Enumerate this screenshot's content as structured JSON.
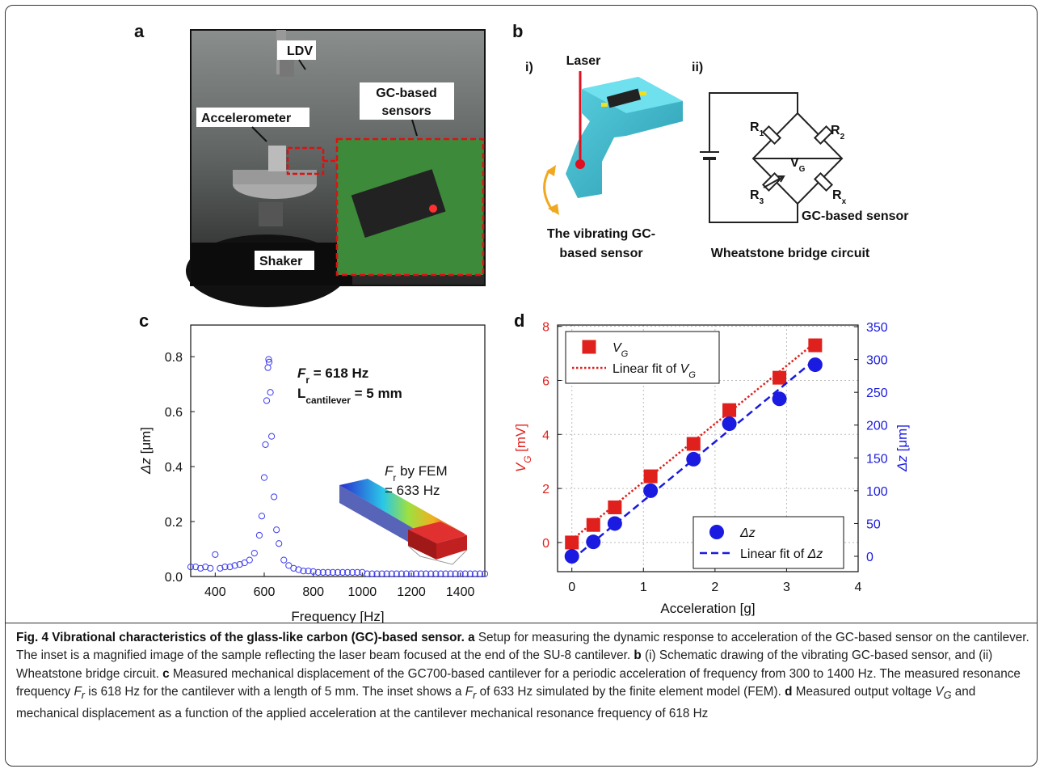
{
  "panel_a": {
    "label": "a",
    "callouts": [
      "LDV",
      "Accelerometer",
      "GC-based",
      "sensors",
      "Shaker"
    ]
  },
  "panel_b": {
    "label": "b",
    "part_i": {
      "label": "i)",
      "laser": "Laser",
      "caption": [
        "The vibrating GC-",
        "based sensor"
      ]
    },
    "part_ii": {
      "label": "ii)",
      "resistors": [
        [
          "R",
          "1"
        ],
        [
          "R",
          "2"
        ],
        [
          "R",
          "3"
        ],
        [
          "R",
          "x"
        ]
      ],
      "voltage": [
        "V",
        "G"
      ],
      "sensor": "GC-based sensor",
      "caption": "Wheatstone bridge circuit"
    }
  },
  "chart_data": [
    {
      "type": "scatter",
      "panel_label": "c",
      "xlabel": "Frequency [Hz]",
      "ylabel": [
        {
          "text": "Δz",
          "style": "italic"
        },
        {
          "text": " [μm]",
          "style": "plain"
        }
      ],
      "xlim": [
        300,
        1500
      ],
      "xticks": [
        400,
        600,
        800,
        1000,
        1200,
        1400
      ],
      "ylim": [
        0,
        0.915
      ],
      "yticks": [
        {
          "value": 0,
          "label": "0.0"
        },
        0.2,
        0.4,
        0.6,
        0.8
      ],
      "series": [
        {
          "color": "#3c3cf0",
          "marker": "open-circle",
          "x": [
            300,
            320,
            340,
            360,
            380,
            400,
            420,
            440,
            460,
            480,
            500,
            520,
            540,
            560,
            580,
            590,
            600,
            605,
            610,
            615,
            618,
            620,
            625,
            630,
            640,
            650,
            660,
            680,
            700,
            720,
            740,
            760,
            780,
            800,
            820,
            840,
            860,
            880,
            900,
            920,
            940,
            960,
            980,
            1000,
            1020,
            1040,
            1060,
            1080,
            1100,
            1120,
            1140,
            1160,
            1180,
            1200,
            1220,
            1240,
            1260,
            1280,
            1300,
            1320,
            1340,
            1360,
            1380,
            1400,
            1420,
            1440,
            1460,
            1480,
            1500
          ],
          "values": [
            0.035,
            0.035,
            0.03,
            0.035,
            0.03,
            0.08,
            0.03,
            0.035,
            0.035,
            0.04,
            0.044,
            0.05,
            0.06,
            0.085,
            0.15,
            0.22,
            0.36,
            0.48,
            0.64,
            0.76,
            0.79,
            0.78,
            0.67,
            0.51,
            0.29,
            0.17,
            0.12,
            0.06,
            0.04,
            0.03,
            0.025,
            0.02,
            0.02,
            0.018,
            0.015,
            0.015,
            0.015,
            0.015,
            0.015,
            0.015,
            0.015,
            0.015,
            0.015,
            0.015,
            0.01,
            0.01,
            0.01,
            0.01,
            0.01,
            0.01,
            0.01,
            0.01,
            0.01,
            0.01,
            0.01,
            0.01,
            0.01,
            0.01,
            0.01,
            0.01,
            0.01,
            0.01,
            0.01,
            0.01,
            0.01,
            0.01,
            0.01,
            0.01,
            0.01
          ]
        }
      ],
      "annotations": [
        [
          {
            "text": "F",
            "style": "bold-italic"
          },
          {
            "text": "r",
            "style": "bold-sub"
          },
          {
            "text": " = 618 Hz",
            "style": "bold"
          }
        ],
        [
          {
            "text": "L",
            "style": "bold"
          },
          {
            "text": "cantilever",
            "style": "bold-sub"
          },
          {
            "text": " = 5 mm",
            "style": "bold"
          }
        ],
        [
          {
            "text": "F",
            "style": "italic"
          },
          {
            "text": "r",
            "style": "sub"
          },
          {
            "text": " by FEM",
            "style": "plain"
          }
        ],
        [
          {
            "text": "= 633 Hz",
            "style": "plain"
          }
        ]
      ]
    },
    {
      "type": "scatter",
      "panel_label": "d",
      "xlabel": "Acceleration [g]",
      "ylabel": [
        {
          "text": "V",
          "style": "italic"
        },
        {
          "text": "G",
          "style": "italic-sub"
        },
        {
          "text": " [mV]",
          "style": "plain"
        }
      ],
      "y2label": [
        {
          "text": "Δz",
          "style": "italic"
        },
        {
          "text": " [μm]",
          "style": "plain"
        }
      ],
      "xlim": [
        -0.2,
        4
      ],
      "xticks": [
        0,
        1,
        2,
        3,
        4
      ],
      "ylim": [
        -1.08,
        8.05
      ],
      "yticks": [
        0,
        2,
        4,
        6,
        8
      ],
      "y2lim": [
        -23.4,
        352.5
      ],
      "y2ticks": [
        0,
        50,
        100,
        150,
        200,
        250,
        300,
        350
      ],
      "grid": true,
      "y_color": "#e0201c",
      "y2_color": "#1a1ae0",
      "series": [
        {
          "name": [
            {
              "text": "V",
              "style": "italic"
            },
            {
              "text": "G",
              "style": "italic-sub"
            }
          ],
          "color": "#e0201c",
          "marker": "square",
          "legend": "upper left",
          "x": [
            0,
            0.3,
            0.6,
            1.1,
            1.7,
            2.2,
            2.9,
            3.4
          ],
          "values": [
            0,
            0.65,
            1.3,
            2.45,
            3.65,
            4.9,
            6.1,
            7.3
          ]
        },
        {
          "name": [
            {
              "text": "Linear fit of ",
              "style": "plain"
            },
            {
              "text": "V",
              "style": "italic"
            },
            {
              "text": "G",
              "style": "italic-sub"
            }
          ],
          "color": "#e0201c",
          "marker": "dotted-line",
          "legend": "upper left",
          "x": [
            0,
            3.4
          ],
          "values": [
            0.1,
            7.4
          ]
        },
        {
          "name": [
            {
              "text": "Δz",
              "style": "italic"
            }
          ],
          "color": "#1a1ae0",
          "marker": "circle",
          "legend": "lower right",
          "axis": "y2",
          "x": [
            0,
            0.3,
            0.6,
            1.1,
            1.7,
            2.2,
            2.9,
            3.4
          ],
          "values": [
            0,
            22,
            50,
            100,
            148,
            202,
            240,
            292
          ]
        },
        {
          "name": [
            {
              "text": "Linear fit of ",
              "style": "plain"
            },
            {
              "text": "Δz",
              "style": "italic"
            }
          ],
          "color": "#1a1ae0",
          "marker": "dashed-line",
          "legend": "lower right",
          "axis": "y2",
          "x": [
            0,
            3.4
          ],
          "values": [
            -5,
            300
          ]
        }
      ]
    }
  ],
  "caption": {
    "segments": [
      "Fig. 4 Vibrational characteristics of the glass-like carbon (GC)-based sensor.",
      "a",
      "Setup for measuring the dynamic response to acceleration of the GC-based sensor on the cantilever. The inset is a magnified image of the sample reflecting the laser beam focused at the end of the SU-8 cantilever.",
      "b",
      "(i) Schematic drawing of the vibrating GC-based sensor, and (ii) Wheatstone bridge circuit.",
      "c",
      "Measured mechanical displacement of the GC700-based cantilever for a periodic acceleration of frequency from 300 to 1400 Hz. The measured resonance frequency",
      "F",
      "r",
      "is 618 Hz for the cantilever with a length of 5 mm. The inset shows a",
      "F",
      "r",
      "of 633 Hz simulated by the finite element model (FEM).",
      "d",
      "Measured output voltage",
      "V",
      "G",
      "and mechanical displacement as a function of the applied acceleration at the cantilever mechanical resonance frequency of 618 Hz"
    ]
  }
}
